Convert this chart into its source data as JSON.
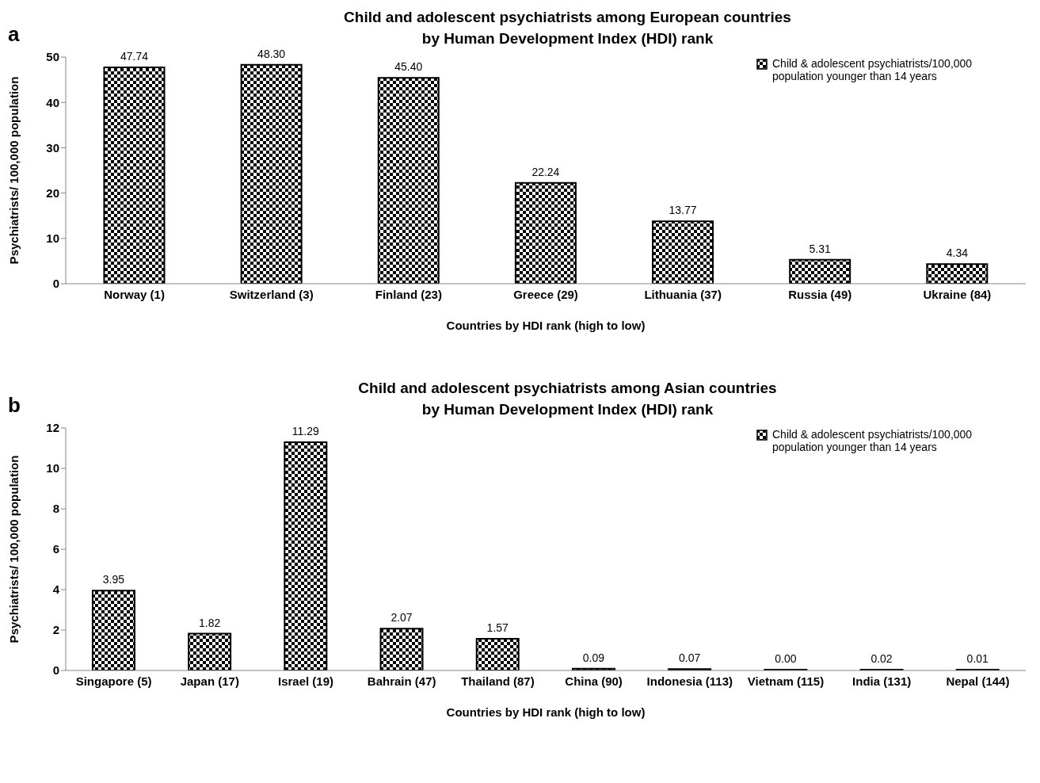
{
  "chart_data": [
    {
      "type": "bar",
      "title": "Child and adolescent psychiatrists among European countries\nby Human Development Index (HDI) rank",
      "xlabel": "Countries by HDI rank (high to low)",
      "ylabel": "Psychiatrists/ 100,000 population",
      "annotations": [
        "a"
      ],
      "categories": [
        "Norway (1)",
        "Switzerland (3)",
        "Finland (23)",
        "Greece (29)",
        "Lithuania (37)",
        "Russia (49)",
        "Ukraine (84)"
      ],
      "series": [
        {
          "name": "Child & adolescent psychiatrists/100,000 population younger than 14 years",
          "color": "#000000",
          "values": [
            47.74,
            48.3,
            45.4,
            22.24,
            13.77,
            5.31,
            4.34
          ],
          "value_labels": [
            "47.74",
            "48.30",
            "45.40",
            "22.24",
            "13.77",
            "5.31",
            "4.34"
          ]
        }
      ],
      "ylim": [
        0,
        50
      ],
      "yticks": [
        0,
        10,
        20,
        30,
        40,
        50
      ],
      "grid": false,
      "legend": "top right"
    },
    {
      "type": "bar",
      "title": "Child and adolescent psychiatrists among Asian countries\nby Human Development Index (HDI) rank",
      "xlabel": "Countries by HDI rank (high to low)",
      "ylabel": "Psychiatrists/ 100,000 population",
      "annotations": [
        "b"
      ],
      "categories": [
        "Singapore (5)",
        "Japan (17)",
        "Israel (19)",
        "Bahrain (47)",
        "Thailand (87)",
        "China (90)",
        "Indonesia (113)",
        "Vietnam (115)",
        "India (131)",
        "Nepal (144)"
      ],
      "series": [
        {
          "name": "Child & adolescent psychiatrists/100,000 population younger than 14 years",
          "color": "#000000",
          "values": [
            3.95,
            1.82,
            11.29,
            2.07,
            1.57,
            0.09,
            0.07,
            0,
            0.02,
            0.01
          ],
          "value_labels": [
            "3.95",
            "1.82",
            "11.29",
            "2.07",
            "1.57",
            "0.09",
            "0.07",
            "0.00",
            "0.02",
            "0.01"
          ]
        }
      ],
      "ylim": [
        0,
        12
      ],
      "yticks": [
        0,
        2,
        4,
        6,
        8,
        10,
        12
      ],
      "grid": false,
      "legend": "top right"
    }
  ]
}
